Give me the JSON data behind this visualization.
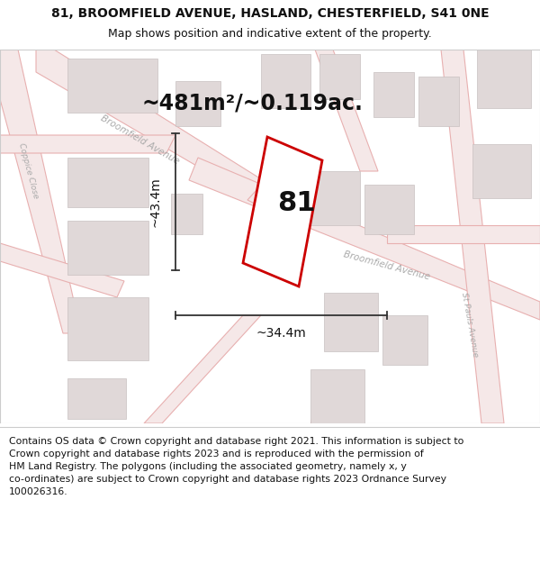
{
  "title_line1": "81, BROOMFIELD AVENUE, HASLAND, CHESTERFIELD, S41 0NE",
  "title_line2": "Map shows position and indicative extent of the property.",
  "area_label": "~481m²/~0.119ac.",
  "width_label": "~34.4m",
  "height_label": "~43.4m",
  "plot_number": "81",
  "footer_text_lines": [
    "Contains OS data © Crown copyright and database right 2021. This information is subject to",
    "Crown copyright and database rights 2023 and is reproduced with the permission of",
    "HM Land Registry. The polygons (including the associated geometry, namely x, y",
    "co-ordinates) are subject to Crown copyright and database rights 2023 Ordnance Survey",
    "100026316."
  ],
  "map_bg": "#f7f0f0",
  "road_line_color": "#e8b0b0",
  "road_fill_color": "#f5e8e8",
  "building_face_color": "#e0d8d8",
  "building_edge_color": "#c8c0c0",
  "plot_outline_color": "#cc0000",
  "dim_line_color": "#333333",
  "street_label_color": "#aaaaaa",
  "title_fontsize": 10,
  "subtitle_fontsize": 9,
  "footer_fontsize": 7.8,
  "area_fontsize": 17,
  "plot_num_fontsize": 22,
  "dim_fontsize": 10
}
